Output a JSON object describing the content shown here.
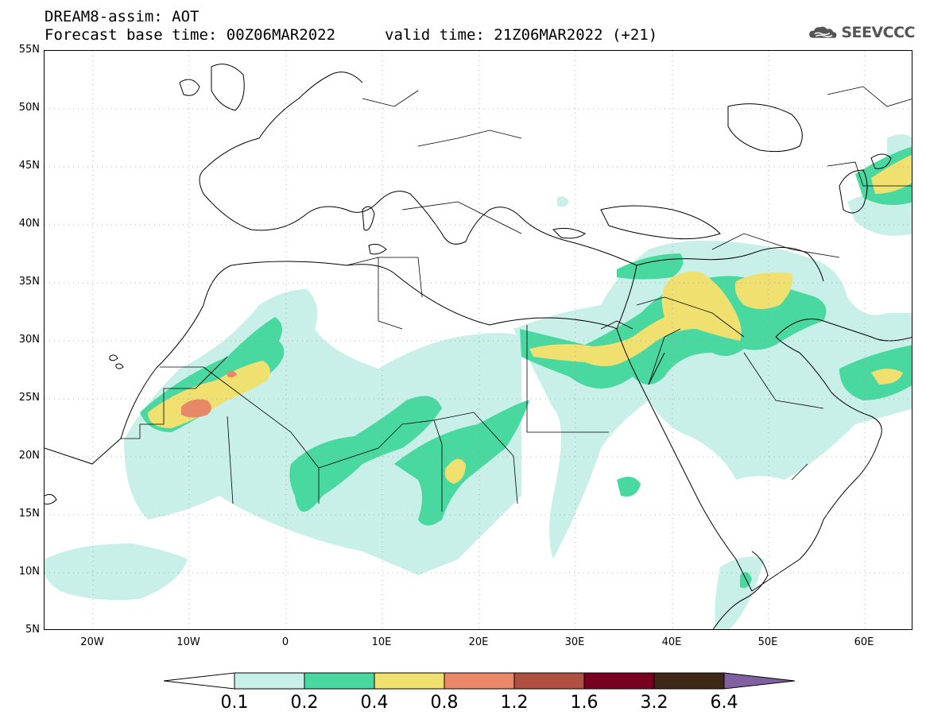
{
  "header": {
    "title": "DREAM8-assim: AOT",
    "base_time": "Forecast base time: 00Z06MAR2022",
    "valid_time": "valid time: 21Z06MAR2022 (+21)"
  },
  "logo": {
    "text": "SEEVCCC",
    "icon": "cloud-icon"
  },
  "axes": {
    "lat_labels": [
      "55N",
      "50N",
      "45N",
      "40N",
      "35N",
      "30N",
      "25N",
      "20N",
      "15N",
      "10N",
      "5N"
    ],
    "lon_labels": [
      "20W",
      "10W",
      "0",
      "10E",
      "20E",
      "30E",
      "40E",
      "50E",
      "60E"
    ],
    "lat_range": [
      5,
      55
    ],
    "lon_range": [
      -25,
      65
    ],
    "grid": "dotted"
  },
  "legend": {
    "levels": [
      "0.1",
      "0.2",
      "0.4",
      "0.8",
      "1.2",
      "1.6",
      "3.2",
      "6.4"
    ],
    "colors": [
      "#c8f0e8",
      "#48d8a0",
      "#f0e070",
      "#e88868",
      "#b05040",
      "#780020",
      "#402818"
    ],
    "under_color": "#ffffff",
    "over_color": "#8060a0"
  },
  "colors": {
    "aot_01_02": "#c8f0e8",
    "aot_02_04": "#48d8a0",
    "aot_04_08": "#f0e070",
    "aot_08_12": "#e88868"
  }
}
